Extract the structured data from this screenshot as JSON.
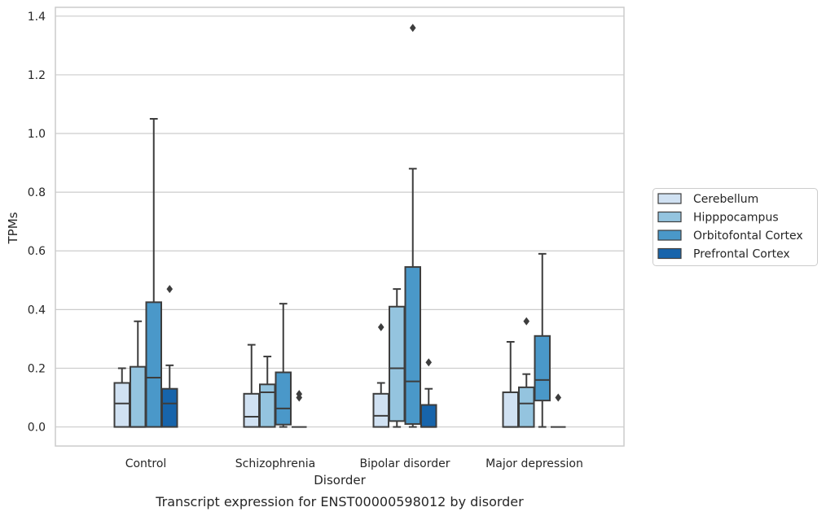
{
  "chart_data": {
    "type": "box",
    "xlabel": "Disorder",
    "ylabel": "TPMs",
    "caption": "Transcript expression for ENST00000598012 by disorder",
    "ylim": [
      -0.065,
      1.43
    ],
    "yticks": [
      "0.0",
      "0.2",
      "0.4",
      "0.6",
      "0.8",
      "1.0",
      "1.2",
      "1.4"
    ],
    "grid": "horizontal",
    "legend_position": "right",
    "categories": [
      "Control",
      "Schizophrenia",
      "Bipolar disorder",
      "Major depression"
    ],
    "series": [
      {
        "name": "Cerebellum",
        "color": "#d0e1f2",
        "boxes": [
          {
            "min": 0.0,
            "q1": 0.0,
            "median": 0.08,
            "q3": 0.15,
            "max": 0.2,
            "outliers": []
          },
          {
            "min": 0.0,
            "q1": 0.0,
            "median": 0.035,
            "q3": 0.113,
            "max": 0.28,
            "outliers": []
          },
          {
            "min": 0.0,
            "q1": 0.0,
            "median": 0.038,
            "q3": 0.113,
            "max": 0.15,
            "outliers": [
              0.34
            ]
          },
          {
            "min": 0.0,
            "q1": 0.0,
            "median": 0.0,
            "q3": 0.118,
            "max": 0.29,
            "outliers": []
          }
        ]
      },
      {
        "name": "Hipppocampus",
        "color": "#94c4df",
        "boxes": [
          {
            "min": 0.0,
            "q1": 0.0,
            "median": 0.0,
            "q3": 0.205,
            "max": 0.36,
            "outliers": []
          },
          {
            "min": 0.0,
            "q1": 0.0,
            "median": 0.118,
            "q3": 0.145,
            "max": 0.24,
            "outliers": []
          },
          {
            "min": 0.0,
            "q1": 0.02,
            "median": 0.2,
            "q3": 0.41,
            "max": 0.47,
            "outliers": []
          },
          {
            "min": 0.0,
            "q1": 0.0,
            "median": 0.08,
            "q3": 0.135,
            "max": 0.18,
            "outliers": [
              0.36
            ]
          }
        ]
      },
      {
        "name": "Orbitofontal Cortex",
        "color": "#4a98c9",
        "boxes": [
          {
            "min": 0.0,
            "q1": 0.0,
            "median": 0.168,
            "q3": 0.425,
            "max": 1.05,
            "outliers": []
          },
          {
            "min": 0.0,
            "q1": 0.008,
            "median": 0.063,
            "q3": 0.186,
            "max": 0.42,
            "outliers": []
          },
          {
            "min": 0.0,
            "q1": 0.01,
            "median": 0.155,
            "q3": 0.545,
            "max": 0.88,
            "outliers": [
              1.36
            ]
          },
          {
            "min": 0.0,
            "q1": 0.09,
            "median": 0.16,
            "q3": 0.31,
            "max": 0.59,
            "outliers": []
          }
        ]
      },
      {
        "name": "Prefrontal Cortex",
        "color": "#1764ab",
        "boxes": [
          {
            "min": 0.0,
            "q1": 0.0,
            "median": 0.08,
            "q3": 0.13,
            "max": 0.21,
            "outliers": [
              0.47
            ]
          },
          {
            "min": 0.0,
            "q1": 0.0,
            "median": 0.0,
            "q3": 0.0,
            "max": 0.0,
            "outliers": [
              0.1,
              0.112
            ]
          },
          {
            "min": 0.0,
            "q1": 0.0,
            "median": 0.0,
            "q3": 0.075,
            "max": 0.13,
            "outliers": [
              0.22
            ]
          },
          {
            "min": 0.0,
            "q1": 0.0,
            "median": 0.0,
            "q3": 0.0,
            "max": 0.0,
            "outliers": [
              0.1
            ]
          }
        ]
      }
    ]
  }
}
